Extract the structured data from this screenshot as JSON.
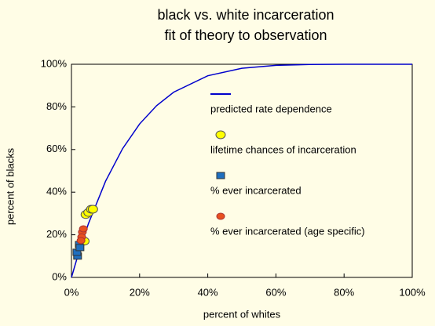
{
  "chart_data": {
    "type": "line-scatter",
    "title": "black vs. white incarceration",
    "subtitle": "fit of theory to observation",
    "x_label": "percent of whites",
    "y_label": "percent of blacks",
    "xlim": [
      0,
      100
    ],
    "ylim": [
      0,
      100
    ],
    "xticks": [
      {
        "value": 0,
        "label": "0%"
      },
      {
        "value": 20,
        "label": "20%"
      },
      {
        "value": 40,
        "label": "40%"
      },
      {
        "value": 60,
        "label": "60%"
      },
      {
        "value": 80,
        "label": "80%"
      },
      {
        "value": 100,
        "label": "100%"
      }
    ],
    "yticks": [
      {
        "value": 0,
        "label": "0%"
      },
      {
        "value": 20,
        "label": "20%"
      },
      {
        "value": 40,
        "label": "40%"
      },
      {
        "value": 60,
        "label": "60%"
      },
      {
        "value": 80,
        "label": "80%"
      },
      {
        "value": 100,
        "label": "100%"
      }
    ],
    "grid": false,
    "series": [
      {
        "name": "predicted rate dependence",
        "kind": "line",
        "color": "#0000cc",
        "x": [
          0,
          2,
          5,
          10,
          15,
          20,
          25,
          30,
          40,
          50,
          60,
          70,
          80,
          100
        ],
        "values": [
          0,
          10.9,
          25.3,
          45.1,
          60.4,
          72,
          80.6,
          86.9,
          94.6,
          98.1,
          99.5,
          99.9,
          100,
          100
        ]
      },
      {
        "name": "lifetime chances of incarceration",
        "kind": "circle",
        "color": "#ffff00",
        "x": [
          4.2,
          5,
          5.8,
          6.3,
          3.8
        ],
        "values": [
          29.5,
          30.5,
          32,
          32,
          17
        ]
      },
      {
        "name": "% ever incarcerated",
        "kind": "square",
        "color": "#1f6fc0",
        "x": [
          1.8,
          1.6,
          2.3,
          2.5
        ],
        "values": [
          10,
          11.8,
          15.4,
          14
        ]
      },
      {
        "name": "% ever incarcerated (age specific)",
        "kind": "dot",
        "color": "#e8501f",
        "x": [
          3.2,
          3,
          2.8,
          3.5
        ],
        "values": [
          21.3,
          19,
          17.3,
          22.8
        ]
      }
    ]
  }
}
